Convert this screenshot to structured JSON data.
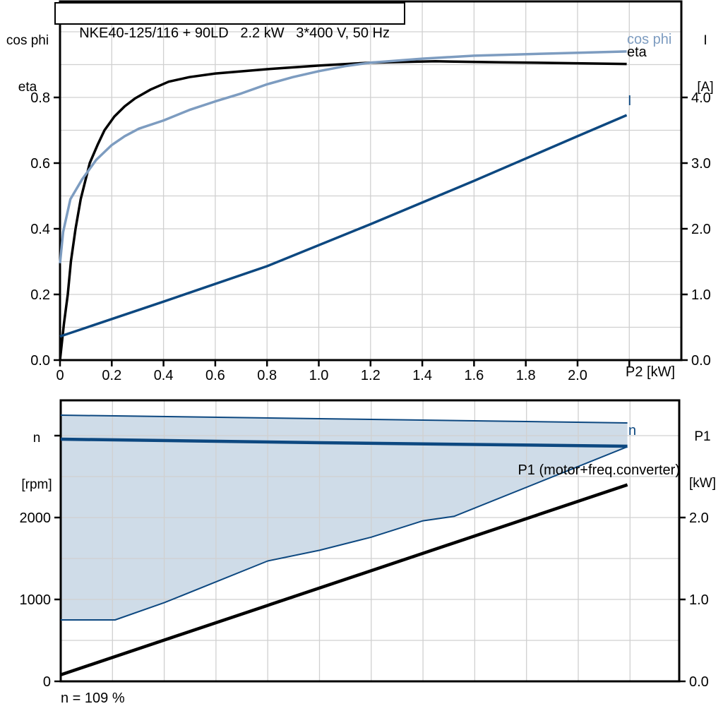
{
  "title": "NKE40-125/116 + 90LD   2.2 kW   3*400 V, 50 Hz",
  "footnote": "n = 109 %",
  "colors": {
    "black": "#000000",
    "light_blue": "#7d9cc0",
    "dark_blue": "#0d4880",
    "shade": "#cfdce8",
    "grid": "#d0d0d0"
  },
  "labels": {
    "top_left_line1": "cos phi",
    "top_left_line2": "eta",
    "top_right_line1": "I",
    "top_right_line2": "[A]",
    "bottom_left_line1": "n",
    "bottom_left_line2": "[rpm]",
    "bottom_right_line1": "P1",
    "bottom_right_line2": "[kW]",
    "x_axis_label": "P2 [kW]",
    "curve_cos_phi": "cos phi",
    "curve_eta": "eta",
    "curve_current": "I",
    "curve_speed": "n",
    "curve_input_power": "P1 (motor+freq.converter)"
  },
  "chart_data": [
    {
      "type": "line",
      "title": "NKE40-125/116 + 90LD 2.2 kW 3*400 V, 50 Hz",
      "xlabel": "P2 [kW]",
      "x_range": [
        0,
        2.4
      ],
      "grid": {
        "x_step": 0.2,
        "y_step": 0.1
      },
      "x_ticks": {
        "values": [
          0,
          0.2,
          0.4,
          0.6,
          0.8,
          1.0,
          1.2,
          1.4,
          1.6,
          1.8,
          2.0,
          2.2
        ],
        "labels": [
          "0",
          "0.2",
          "0.4",
          "0.6",
          "0.8",
          "1.0",
          "1.2",
          "1.4",
          "1.6",
          "1.8",
          "2.0",
          ""
        ]
      },
      "y_left": {
        "label": "cos phi / eta",
        "range": [
          0,
          1.09
        ],
        "tick_values": [
          0,
          0.2,
          0.4,
          0.6,
          0.8
        ],
        "tick_labels": [
          "0.0",
          "0.2",
          "0.4",
          "0.6",
          "0.8"
        ]
      },
      "y_right": {
        "label": "I [A]",
        "range": [
          0,
          5.46
        ],
        "tick_values": [
          0,
          1,
          2,
          3,
          4
        ],
        "tick_labels": [
          "0.0",
          "1.0",
          "2.0",
          "3.0",
          "4.0"
        ]
      },
      "series": [
        {
          "name": "eta",
          "axis": "left",
          "color_key": "black",
          "width": 3.5,
          "points": [
            [
              0,
              0
            ],
            [
              0.015,
              0.11
            ],
            [
              0.03,
              0.2
            ],
            [
              0.042,
              0.3
            ],
            [
              0.06,
              0.4
            ],
            [
              0.08,
              0.49
            ],
            [
              0.115,
              0.6
            ],
            [
              0.145,
              0.655
            ],
            [
              0.172,
              0.7
            ],
            [
              0.21,
              0.742
            ],
            [
              0.25,
              0.773
            ],
            [
              0.29,
              0.797
            ],
            [
              0.35,
              0.824
            ],
            [
              0.42,
              0.848
            ],
            [
              0.5,
              0.862
            ],
            [
              0.6,
              0.873
            ],
            [
              0.8,
              0.886
            ],
            [
              1.0,
              0.897
            ],
            [
              1.2,
              0.906
            ],
            [
              1.45,
              0.91
            ],
            [
              1.7,
              0.907
            ],
            [
              2.19,
              0.902
            ]
          ]
        },
        {
          "name": "cos-phi",
          "axis": "left",
          "color_key": "light_blue",
          "width": 3.5,
          "points": [
            [
              0,
              0.295
            ],
            [
              0.012,
              0.39
            ],
            [
              0.04,
              0.49
            ],
            [
              0.085,
              0.55
            ],
            [
              0.14,
              0.61
            ],
            [
              0.2,
              0.655
            ],
            [
              0.25,
              0.682
            ],
            [
              0.305,
              0.705
            ],
            [
              0.4,
              0.73
            ],
            [
              0.5,
              0.762
            ],
            [
              0.6,
              0.788
            ],
            [
              0.7,
              0.812
            ],
            [
              0.8,
              0.84
            ],
            [
              0.9,
              0.862
            ],
            [
              1.0,
              0.88
            ],
            [
              1.1,
              0.895
            ],
            [
              1.2,
              0.906
            ],
            [
              1.4,
              0.918
            ],
            [
              1.6,
              0.927
            ],
            [
              1.9,
              0.934
            ],
            [
              2.19,
              0.94
            ]
          ]
        },
        {
          "name": "current",
          "axis": "right",
          "color_key": "dark_blue",
          "width": 3.5,
          "points": [
            [
              0,
              0.36
            ],
            [
              0.4,
              0.89
            ],
            [
              0.8,
              1.43
            ],
            [
              1.2,
              2.07
            ],
            [
              1.6,
              2.73
            ],
            [
              2.0,
              3.41
            ],
            [
              2.19,
              3.73
            ]
          ]
        }
      ]
    },
    {
      "type": "line",
      "xlabel": "",
      "x_range": [
        0,
        2.39
      ],
      "grid": {
        "x_step": 0.2,
        "y_step": 500
      },
      "y_left": {
        "label": "n [rpm]",
        "range": [
          0,
          3430
        ],
        "tick_values": [
          0,
          1000,
          2000,
          3000
        ],
        "tick_labels": [
          "0",
          "1000",
          "2000",
          ""
        ]
      },
      "y_right": {
        "label": "P1 [kW]",
        "range": [
          0,
          3.43
        ],
        "tick_values": [
          0,
          1,
          2
        ],
        "tick_labels": [
          "0.0",
          "1.0",
          "2.0"
        ]
      },
      "area": {
        "name": "speed-control-range",
        "color_key": "shade",
        "upper": [
          [
            0,
            3250
          ],
          [
            1.0,
            3207
          ],
          [
            2.19,
            3155
          ]
        ],
        "lower": [
          [
            0,
            750
          ],
          [
            0.21,
            750
          ],
          [
            0.4,
            960
          ],
          [
            0.6,
            1215
          ],
          [
            0.8,
            1470
          ],
          [
            1.0,
            1600
          ],
          [
            1.2,
            1760
          ],
          [
            1.4,
            1960
          ],
          [
            1.52,
            2015
          ],
          [
            2.19,
            2865
          ]
        ]
      },
      "series": [
        {
          "name": "n-max",
          "axis": "left",
          "color_key": "dark_blue",
          "width": 2,
          "points": [
            [
              0,
              3250
            ],
            [
              1.0,
              3207
            ],
            [
              2.19,
              3155
            ]
          ]
        },
        {
          "name": "n-min",
          "axis": "left",
          "color_key": "dark_blue",
          "width": 2,
          "points": [
            [
              0,
              750
            ],
            [
              0.21,
              750
            ],
            [
              0.4,
              960
            ],
            [
              0.6,
              1215
            ],
            [
              0.8,
              1470
            ],
            [
              1.0,
              1600
            ],
            [
              1.2,
              1760
            ],
            [
              1.4,
              1960
            ],
            [
              1.52,
              2015
            ],
            [
              2.19,
              2865
            ]
          ]
        },
        {
          "name": "n",
          "axis": "left",
          "color_key": "dark_blue",
          "width": 4.5,
          "points": [
            [
              0,
              2957
            ],
            [
              1.0,
              2914
            ],
            [
              2.19,
              2871
            ]
          ]
        },
        {
          "name": "p1",
          "axis": "right",
          "color_key": "black",
          "width": 4.5,
          "points": [
            [
              0,
              0.08
            ],
            [
              2.19,
              2.4
            ]
          ]
        }
      ]
    }
  ]
}
